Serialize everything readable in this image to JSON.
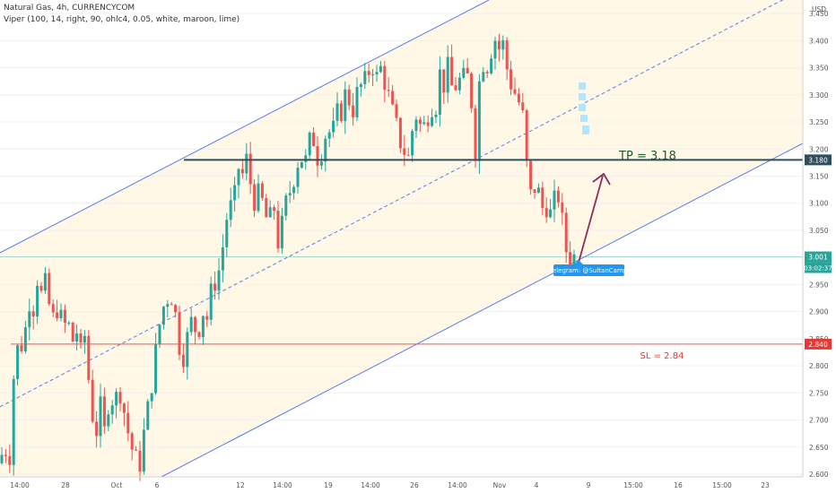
{
  "header": {
    "symbol_line": "Natural Gas, 4h, CURRENCYCOM",
    "indicator_line": "Viper (100, 14, right, 90, ohlc4, 0.05, white, maroon, lime)"
  },
  "price_axis": {
    "currency": "USD",
    "ticks": [
      "3.450",
      "3.400",
      "3.350",
      "3.300",
      "3.250",
      "3.200",
      "3.150",
      "3.100",
      "3.050",
      "3.000",
      "2.950",
      "2.900",
      "2.850",
      "2.800",
      "2.750",
      "2.700",
      "2.650",
      "2.600"
    ],
    "current_price": "3.001",
    "countdown": "03:02:37",
    "tp_tag": "3.180",
    "sl_tag": "2.840"
  },
  "time_axis": {
    "ticks": [
      "14:00",
      "28",
      "Oct",
      "6",
      "12",
      "14:00",
      "19",
      "14:00",
      "26",
      "14:00",
      "Nov",
      "4",
      "9",
      "15:00",
      "16",
      "15:00",
      "23"
    ]
  },
  "annotations": {
    "tp_label": "TP = 3.18",
    "sl_label": "SL = 2.84",
    "telegram_label": "Telegram: @SultanCamp"
  },
  "colors": {
    "up": "#26a69a",
    "down": "#ef5350",
    "channel": "#5b7cf0",
    "tp_line": "#2f4f5f",
    "sl_line": "#ef5350",
    "arrow": "#8b2e5a",
    "channel_fill": "#fff8e6",
    "badge": "#2196f3"
  },
  "chart_data": {
    "type": "candlestick",
    "title": "Natural Gas, 4h, CURRENCYCOM",
    "ylim": [
      2.595,
      3.475
    ],
    "close_path": [
      [
        0,
        2.62
      ],
      [
        5,
        2.66
      ],
      [
        10,
        2.61
      ],
      [
        14,
        2.75
      ],
      [
        18,
        2.85
      ],
      [
        22,
        2.8
      ],
      [
        26,
        2.88
      ],
      [
        30,
        2.86
      ],
      [
        34,
        2.95
      ],
      [
        38,
        2.9
      ],
      [
        42,
        2.97
      ],
      [
        46,
        2.93
      ],
      [
        50,
        2.95
      ],
      [
        55,
        2.91
      ],
      [
        60,
        2.88
      ],
      [
        65,
        2.92
      ],
      [
        70,
        2.86
      ],
      [
        75,
        2.89
      ],
      [
        80,
        2.84
      ],
      [
        85,
        2.87
      ],
      [
        90,
        2.82
      ],
      [
        95,
        2.86
      ],
      [
        100,
        2.75
      ],
      [
        104,
        2.7
      ],
      [
        108,
        2.68
      ],
      [
        112,
        2.72
      ],
      [
        116,
        2.67
      ],
      [
        120,
        2.73
      ],
      [
        124,
        2.75
      ],
      [
        128,
        2.72
      ],
      [
        132,
        2.77
      ],
      [
        136,
        2.74
      ],
      [
        140,
        2.7
      ],
      [
        145,
        2.66
      ],
      [
        150,
        2.63
      ],
      [
        155,
        2.61
      ],
      [
        160,
        2.67
      ],
      [
        165,
        2.72
      ],
      [
        170,
        2.78
      ],
      [
        175,
        2.84
      ],
      [
        180,
        2.9
      ],
      [
        185,
        2.92
      ],
      [
        190,
        2.94
      ],
      [
        195,
        2.9
      ],
      [
        200,
        2.84
      ],
      [
        205,
        2.82
      ],
      [
        210,
        2.86
      ],
      [
        215,
        2.89
      ],
      [
        220,
        2.85
      ],
      [
        225,
        2.91
      ],
      [
        230,
        2.88
      ],
      [
        235,
        2.93
      ],
      [
        240,
        2.96
      ],
      [
        245,
        2.98
      ],
      [
        250,
        3.04
      ],
      [
        255,
        3.1
      ],
      [
        260,
        3.08
      ],
      [
        265,
        3.17
      ],
      [
        270,
        3.15
      ],
      [
        275,
        3.18
      ],
      [
        280,
        3.13
      ],
      [
        285,
        3.1
      ],
      [
        290,
        3.12
      ],
      [
        295,
        3.08
      ],
      [
        300,
        3.06
      ],
      [
        305,
        3.1
      ],
      [
        310,
        3.03
      ],
      [
        315,
        3.06
      ],
      [
        320,
        3.11
      ],
      [
        325,
        3.13
      ],
      [
        330,
        3.17
      ],
      [
        335,
        3.19
      ],
      [
        340,
        3.17
      ],
      [
        345,
        3.21
      ],
      [
        350,
        3.22
      ],
      [
        355,
        3.18
      ],
      [
        360,
        3.21
      ],
      [
        365,
        3.24
      ],
      [
        370,
        3.22
      ],
      [
        375,
        3.26
      ],
      [
        380,
        3.27
      ],
      [
        385,
        3.3
      ],
      [
        390,
        3.29
      ],
      [
        395,
        3.27
      ],
      [
        400,
        3.32
      ],
      [
        405,
        3.31
      ],
      [
        410,
        3.34
      ],
      [
        415,
        3.36
      ],
      [
        420,
        3.33
      ],
      [
        425,
        3.35
      ],
      [
        430,
        3.32
      ],
      [
        435,
        3.28
      ],
      [
        440,
        3.25
      ],
      [
        445,
        3.22
      ],
      [
        450,
        3.2
      ],
      [
        455,
        3.18
      ],
      [
        460,
        3.24
      ],
      [
        465,
        3.27
      ],
      [
        470,
        3.23
      ],
      [
        475,
        3.25
      ],
      [
        480,
        3.29
      ],
      [
        485,
        3.27
      ],
      [
        490,
        3.34
      ],
      [
        495,
        3.32
      ],
      [
        500,
        3.35
      ],
      [
        505,
        3.3
      ],
      [
        510,
        3.33
      ],
      [
        515,
        3.32
      ],
      [
        520,
        3.34
      ],
      [
        525,
        3.3
      ],
      [
        530,
        3.2
      ],
      [
        535,
        3.34
      ],
      [
        540,
        3.37
      ],
      [
        545,
        3.35
      ],
      [
        550,
        3.42
      ],
      [
        555,
        3.38
      ],
      [
        560,
        3.4
      ],
      [
        565,
        3.35
      ],
      [
        570,
        3.32
      ],
      [
        575,
        3.3
      ],
      [
        580,
        3.28
      ],
      [
        585,
        3.24
      ],
      [
        588,
        3.14
      ],
      [
        592,
        3.11
      ],
      [
        596,
        3.13
      ],
      [
        600,
        3.12
      ],
      [
        605,
        3.09
      ],
      [
        610,
        3.1
      ],
      [
        615,
        3.07
      ],
      [
        620,
        3.12
      ],
      [
        625,
        3.11
      ],
      [
        628,
        3.03
      ],
      [
        632,
        3.01
      ],
      [
        636,
        3.0
      ],
      [
        640,
        3.001
      ]
    ],
    "lines": {
      "tp": 3.18,
      "sl": 2.84,
      "current": 3.001
    }
  }
}
